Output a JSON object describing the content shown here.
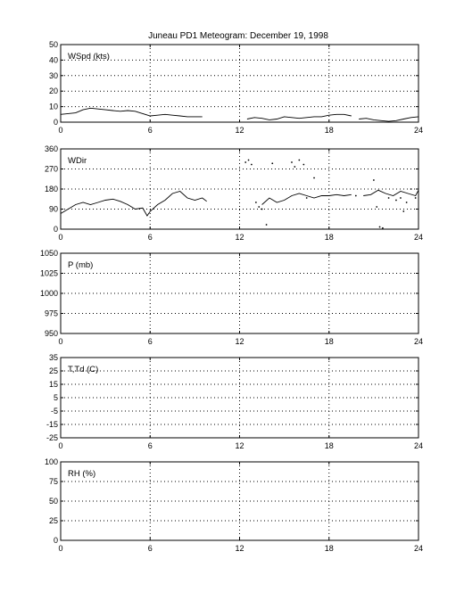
{
  "title": "Juneau PD1 Meteogram:  December 19, 1998",
  "chart_data": [
    {
      "id": "wspd",
      "type": "line",
      "label": "WSpd (kts)",
      "x_ticks": [
        "0",
        "6",
        "12",
        "18",
        "24"
      ],
      "x_range": [
        0,
        24
      ],
      "y_range": [
        0,
        50
      ],
      "y_ticks": [
        "0",
        "10",
        "20",
        "30",
        "40",
        "50"
      ],
      "grid": true,
      "segments": [
        [
          [
            0,
            5
          ],
          [
            0.5,
            5.5
          ],
          [
            1,
            6
          ],
          [
            1.5,
            8
          ],
          [
            2,
            9
          ],
          [
            2.5,
            8.5
          ],
          [
            3,
            8
          ],
          [
            3.5,
            7.5
          ],
          [
            4,
            7
          ],
          [
            4.5,
            7.5
          ],
          [
            5,
            7
          ],
          [
            5.5,
            5.5
          ],
          [
            6,
            4
          ],
          [
            6.5,
            4.5
          ],
          [
            7,
            5
          ],
          [
            7.5,
            4.5
          ],
          [
            8,
            4
          ],
          [
            8.5,
            3.5
          ],
          [
            9,
            3.5
          ],
          [
            9.5,
            3.5
          ]
        ],
        [
          [
            12.5,
            2
          ],
          [
            13,
            3
          ],
          [
            13.5,
            2.5
          ],
          [
            14,
            1.5
          ],
          [
            14.5,
            2
          ],
          [
            15,
            3.5
          ],
          [
            15.5,
            3
          ],
          [
            16,
            2.5
          ],
          [
            16.5,
            3
          ],
          [
            17,
            3.5
          ],
          [
            17.5,
            3.5
          ],
          [
            18,
            4.5
          ],
          [
            18.5,
            5
          ],
          [
            19,
            5
          ],
          [
            19.5,
            4
          ]
        ],
        [
          [
            20,
            2
          ],
          [
            20.5,
            2.5
          ],
          [
            21,
            1.5
          ],
          [
            21.5,
            1
          ],
          [
            22,
            0.5
          ],
          [
            22.5,
            1
          ],
          [
            23,
            2
          ],
          [
            23.5,
            3
          ],
          [
            24,
            3.5
          ]
        ]
      ]
    },
    {
      "id": "wdir",
      "type": "line",
      "label": "WDir",
      "x_ticks": [
        "0",
        "6",
        "12",
        "18",
        "24"
      ],
      "x_range": [
        0,
        24
      ],
      "y_range": [
        0,
        360
      ],
      "y_ticks": [
        "0",
        "90",
        "180",
        "270",
        "360"
      ],
      "grid": true,
      "segments": [
        [
          [
            0,
            70
          ],
          [
            0.5,
            90
          ],
          [
            1,
            110
          ],
          [
            1.5,
            120
          ],
          [
            2,
            110
          ],
          [
            2.5,
            120
          ],
          [
            3,
            130
          ],
          [
            3.5,
            135
          ],
          [
            4,
            125
          ],
          [
            4.5,
            110
          ],
          [
            5,
            90
          ],
          [
            5.5,
            95
          ],
          [
            5.8,
            60
          ],
          [
            6,
            80
          ],
          [
            6.5,
            110
          ],
          [
            7,
            130
          ],
          [
            7.5,
            160
          ],
          [
            8,
            170
          ],
          [
            8.5,
            140
          ],
          [
            9,
            130
          ],
          [
            9.5,
            140
          ],
          [
            9.8,
            125
          ]
        ],
        [
          [
            13.5,
            110
          ],
          [
            14,
            140
          ],
          [
            14.5,
            120
          ],
          [
            15,
            130
          ],
          [
            15.5,
            150
          ],
          [
            16,
            160
          ],
          [
            16.5,
            150
          ],
          [
            17,
            140
          ],
          [
            17.5,
            150
          ],
          [
            18,
            150
          ],
          [
            18.5,
            155
          ],
          [
            19,
            150
          ],
          [
            19.5,
            155
          ]
        ],
        [
          [
            20.3,
            150
          ],
          [
            20.8,
            155
          ],
          [
            21.3,
            175
          ],
          [
            21.8,
            160
          ],
          [
            22.3,
            150
          ],
          [
            22.8,
            170
          ],
          [
            23.3,
            160
          ],
          [
            23.8,
            150
          ],
          [
            24,
            175
          ]
        ]
      ],
      "scatter": [
        [
          12.4,
          300
        ],
        [
          12.6,
          310
        ],
        [
          12.8,
          290
        ],
        [
          13.1,
          120
        ],
        [
          13.3,
          100
        ],
        [
          13.5,
          90
        ],
        [
          13.8,
          20
        ],
        [
          14.2,
          295
        ],
        [
          15.5,
          300
        ],
        [
          15.7,
          280
        ],
        [
          16.0,
          310
        ],
        [
          16.3,
          290
        ],
        [
          16.5,
          140
        ],
        [
          17.0,
          230
        ],
        [
          21.0,
          220
        ],
        [
          21.2,
          100
        ],
        [
          21.4,
          10
        ],
        [
          21.6,
          5
        ],
        [
          22.0,
          140
        ],
        [
          22.5,
          130
        ],
        [
          22.8,
          140
        ],
        [
          23.0,
          80
        ],
        [
          23.2,
          120
        ],
        [
          23.5,
          180
        ],
        [
          23.8,
          140
        ],
        [
          19.8,
          150
        ]
      ]
    },
    {
      "id": "pres",
      "type": "line",
      "label": "P (mb)",
      "x_ticks": [
        "0",
        "6",
        "12",
        "18",
        "24"
      ],
      "x_range": [
        0,
        24
      ],
      "y_range": [
        950,
        1050
      ],
      "y_ticks": [
        "950",
        "975",
        "1000",
        "1025",
        "1050"
      ],
      "grid": true,
      "segments": []
    },
    {
      "id": "temp",
      "type": "line",
      "label": "T,Td (C)",
      "x_ticks": [
        "0",
        "6",
        "12",
        "18",
        "24"
      ],
      "x_range": [
        0,
        24
      ],
      "y_range": [
        -25,
        35
      ],
      "y_ticks": [
        "-25",
        "-15",
        "-5",
        "5",
        "15",
        "25",
        "35"
      ],
      "grid": true,
      "segments": []
    },
    {
      "id": "rh",
      "type": "line",
      "label": "RH (%)",
      "x_ticks": [
        "0",
        "6",
        "12",
        "18",
        "24"
      ],
      "x_range": [
        0,
        24
      ],
      "y_range": [
        0,
        100
      ],
      "y_ticks": [
        "0",
        "25",
        "50",
        "75",
        "100"
      ],
      "grid": true,
      "segments": []
    }
  ]
}
